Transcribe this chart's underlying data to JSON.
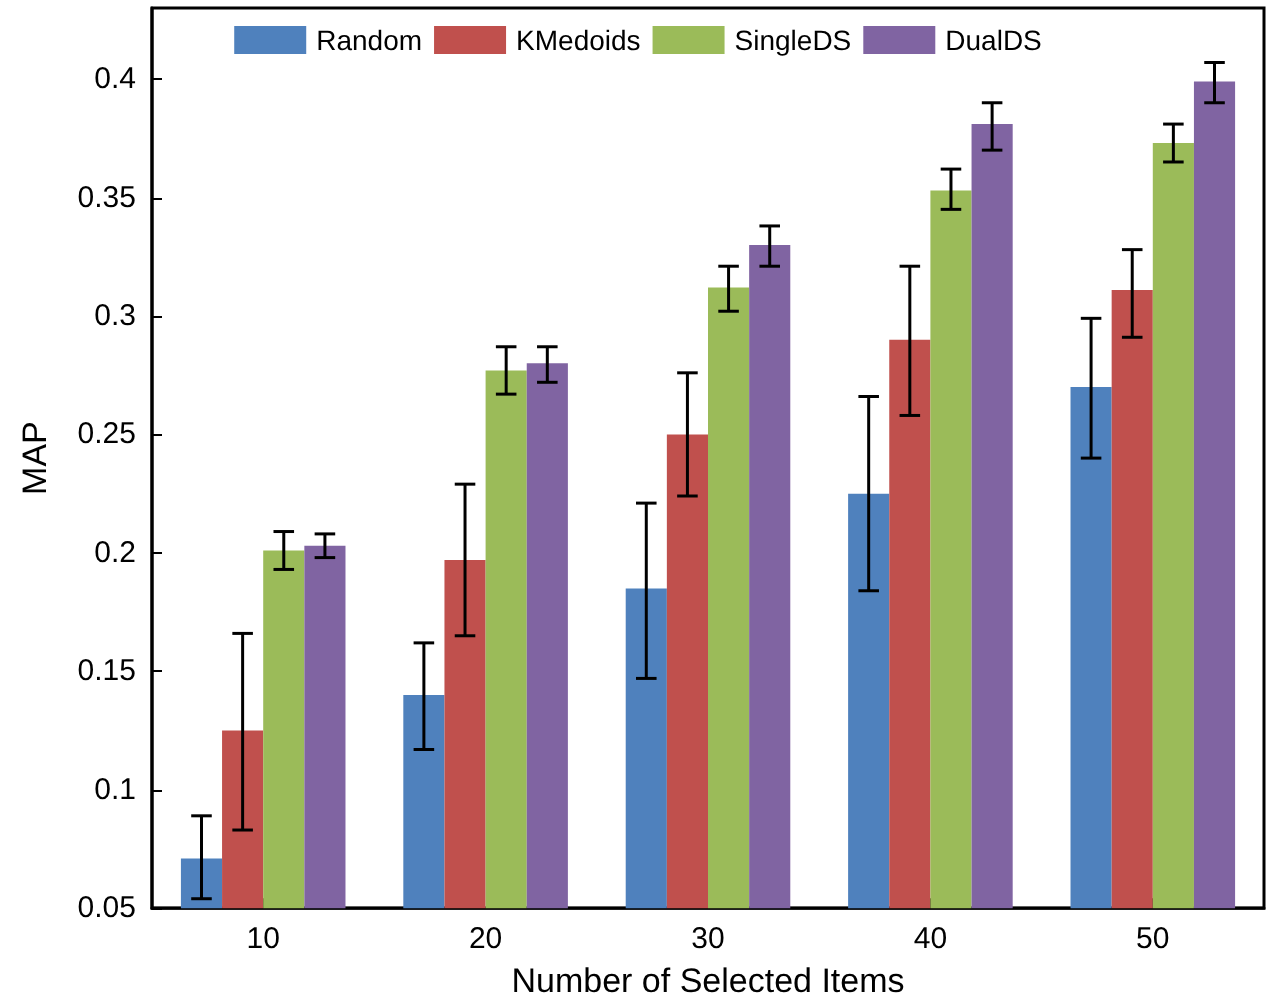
{
  "chart_data": {
    "type": "bar",
    "xlabel": "Number of Selected Items",
    "ylabel": "MAP",
    "categories": [
      "10",
      "20",
      "30",
      "40",
      "50"
    ],
    "series": [
      {
        "name": "Random",
        "color": "#4f81bd",
        "values": [
          0.071,
          0.14,
          0.185,
          0.225,
          0.27
        ],
        "errors": [
          [
            0.054,
            0.089
          ],
          [
            0.117,
            0.162
          ],
          [
            0.147,
            0.221
          ],
          [
            0.184,
            0.266
          ],
          [
            0.24,
            0.299
          ]
        ]
      },
      {
        "name": "KMedoids",
        "color": "#c0504d",
        "values": [
          0.125,
          0.197,
          0.25,
          0.29,
          0.311
        ],
        "errors": [
          [
            0.083,
            0.166
          ],
          [
            0.165,
            0.229
          ],
          [
            0.224,
            0.276
          ],
          [
            0.258,
            0.321
          ],
          [
            0.291,
            0.328
          ]
        ]
      },
      {
        "name": "SingleDS",
        "color": "#9bbb59",
        "values": [
          0.201,
          0.277,
          0.312,
          0.353,
          0.373
        ],
        "errors": [
          [
            0.193,
            0.209
          ],
          [
            0.267,
            0.287
          ],
          [
            0.302,
            0.321
          ],
          [
            0.345,
            0.362
          ],
          [
            0.365,
            0.381
          ]
        ]
      },
      {
        "name": "DualDS",
        "color": "#8064a2",
        "values": [
          0.203,
          0.28,
          0.33,
          0.381,
          0.399
        ],
        "errors": [
          [
            0.198,
            0.208
          ],
          [
            0.272,
            0.287
          ],
          [
            0.321,
            0.338
          ],
          [
            0.37,
            0.39
          ],
          [
            0.39,
            0.407
          ]
        ]
      }
    ],
    "ylim": [
      0.05,
      0.43
    ],
    "yticks": [
      0.05,
      0.1,
      0.15,
      0.2,
      0.25,
      0.3,
      0.35,
      0.4
    ],
    "grid": false,
    "legend": "top"
  }
}
